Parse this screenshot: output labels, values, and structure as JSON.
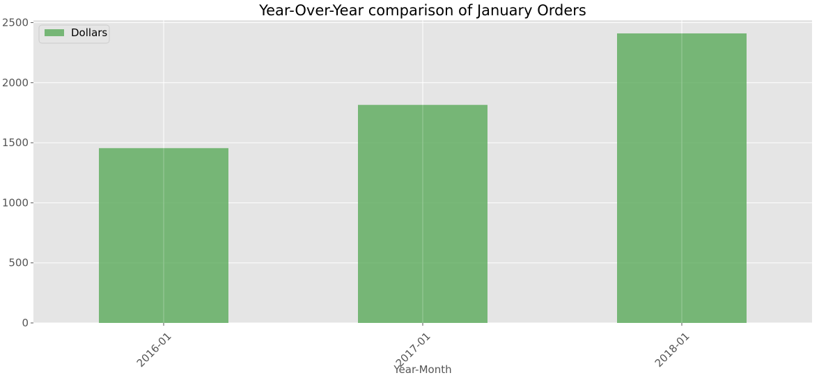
{
  "chart_data": {
    "type": "bar",
    "title": "Year-Over-Year comparison of January Orders",
    "xlabel": "Year-Month",
    "ylabel": "",
    "categories": [
      "2016-01",
      "2017-01",
      "2018-01"
    ],
    "series": [
      {
        "name": "Dollars",
        "values": [
          1455,
          1815,
          2410
        ]
      }
    ],
    "ylim": [
      0,
      2520
    ],
    "yticks": [
      0,
      500,
      1000,
      1500,
      2000,
      2500
    ],
    "ytick_labels": [
      "0",
      "500",
      "1000",
      "1500",
      "2000",
      "2500"
    ],
    "grid": true,
    "legend_position": "top-left",
    "colors": {
      "bar": "#5aaa5a",
      "plot_background": "#e5e5e5",
      "grid": "#ffffff"
    }
  }
}
